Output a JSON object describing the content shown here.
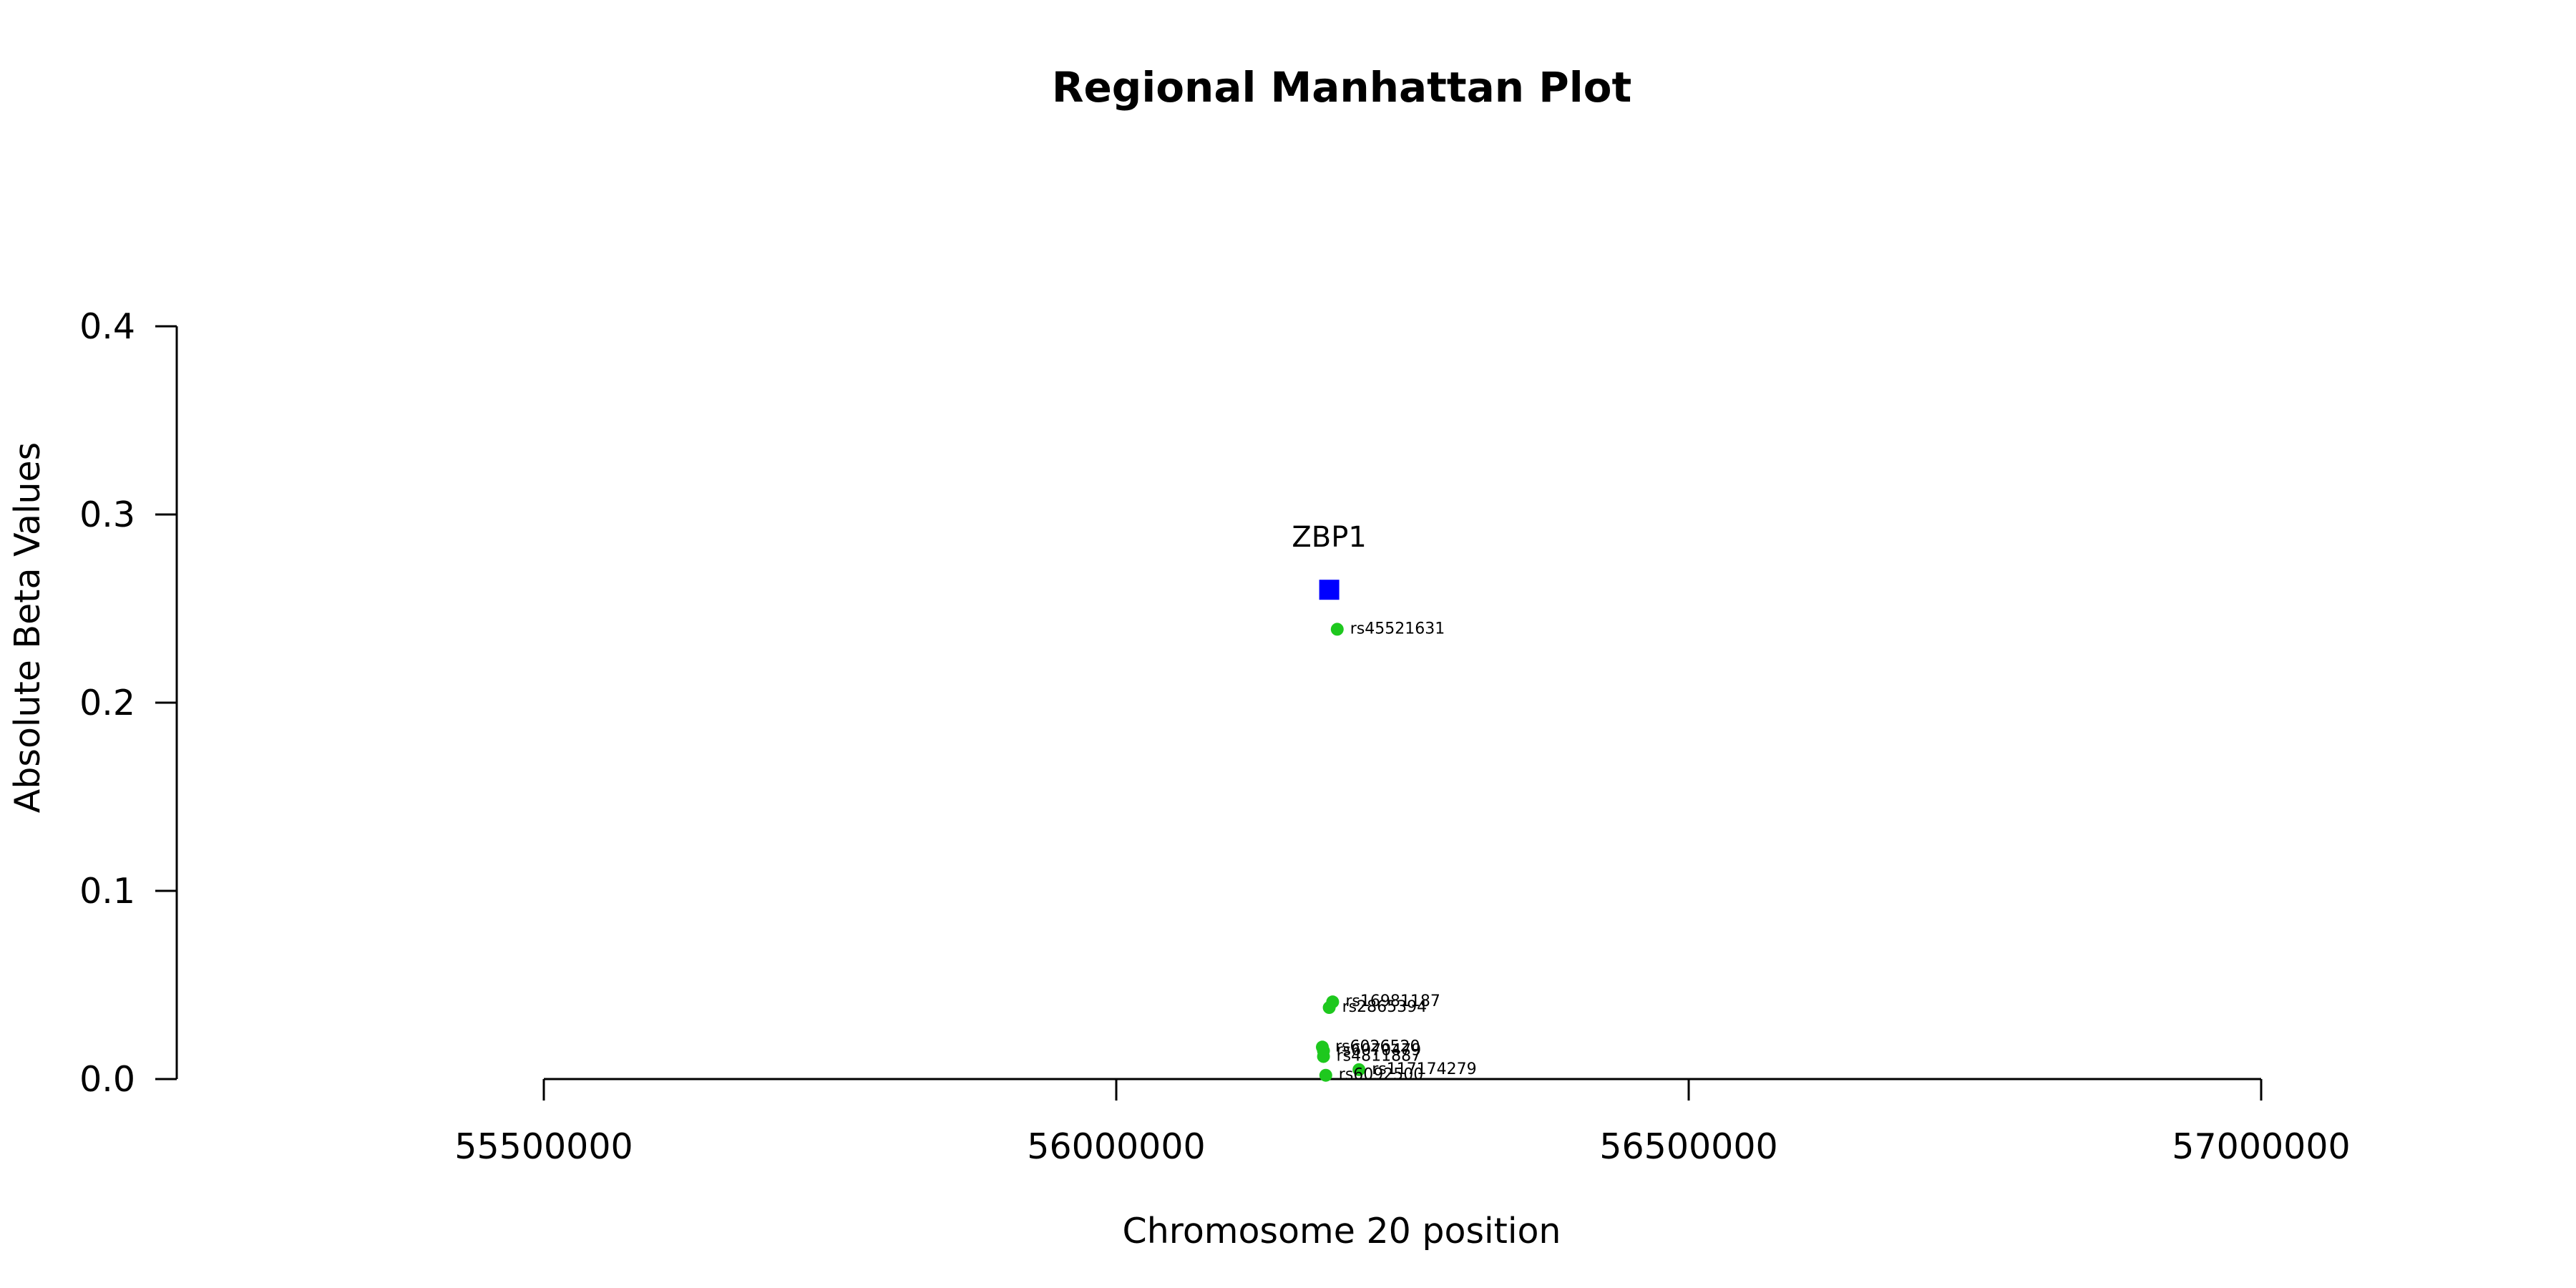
{
  "chart_data": {
    "type": "scatter",
    "title": "Regional Manhattan Plot",
    "xlabel": "Chromosome 20 position",
    "ylabel": "Absolute Beta Values",
    "xlim": [
      55500000,
      57000000
    ],
    "ylim": [
      0,
      0.4
    ],
    "x_ticks": [
      55500000,
      56000000,
      56500000,
      57000000
    ],
    "x_tick_labels": [
      "55500000",
      "56000000",
      "56500000",
      "57000000"
    ],
    "y_ticks": [
      0,
      0.1,
      0.2,
      0.3,
      0.4
    ],
    "y_tick_labels": [
      "0.0",
      "0.1",
      "0.2",
      "0.3",
      "0.4"
    ],
    "grid": false,
    "gene": {
      "name": "ZBP1",
      "x": 56186000,
      "y": 0.26,
      "color": "#0000ff",
      "marker": "square"
    },
    "snp_color": "#1ec81e",
    "snps": [
      {
        "name": "rs45521631",
        "x": 56193000,
        "y": 0.239
      },
      {
        "name": "rs16981187",
        "x": 56189000,
        "y": 0.041
      },
      {
        "name": "rs2865394",
        "x": 56186000,
        "y": 0.038
      },
      {
        "name": "rs6026520",
        "x": 56180000,
        "y": 0.017
      },
      {
        "name": "rs6070479",
        "x": 56181000,
        "y": 0.015
      },
      {
        "name": "rs4811887",
        "x": 56181000,
        "y": 0.012
      },
      {
        "name": "rs117174279",
        "x": 56212000,
        "y": 0.005
      },
      {
        "name": "rs6092500",
        "x": 56183000,
        "y": 0.002
      }
    ]
  }
}
